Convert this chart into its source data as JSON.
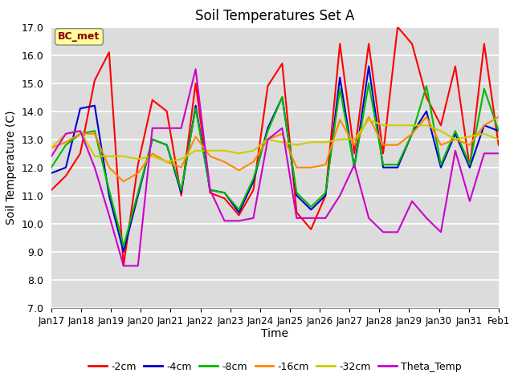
{
  "title": "Soil Temperatures Set A",
  "xlabel": "Time",
  "ylabel": "Soil Temperature (C)",
  "ylim": [
    7.0,
    17.0
  ],
  "yticks": [
    7.0,
    8.0,
    9.0,
    10.0,
    11.0,
    12.0,
    13.0,
    14.0,
    15.0,
    16.0,
    17.0
  ],
  "yticklabels": [
    "7.0",
    "8.0",
    "9.0",
    "10.0",
    "11.0",
    "12.0",
    "13.0",
    "14.0",
    "15.0",
    "16.0",
    "17.0"
  ],
  "bg_color": "#dcdcdc",
  "annotation_text": "BC_met",
  "annotation_bg": "#ffff99",
  "annotation_border": "#8B0000",
  "series_colors": {
    "-2cm": "#ff0000",
    "-4cm": "#0000cc",
    "-8cm": "#00bb00",
    "-16cm": "#ff8800",
    "-32cm": "#cccc00",
    "Theta_Temp": "#cc00cc"
  },
  "x_tick_labels": [
    "Jan 17",
    "Jan 18",
    "Jan 19",
    "Jan 20",
    "Jan 21",
    "Jan 22",
    "Jan 23",
    "Jan 24",
    "Jan 25",
    "Jan 26",
    "Jan 27",
    "Jan 28",
    "Jan 29",
    "Jan 30",
    "Jan 31",
    "Feb 1"
  ],
  "data": {
    "-2cm": [
      11.2,
      11.7,
      12.5,
      15.1,
      16.1,
      8.5,
      12.1,
      14.4,
      14.0,
      11.0,
      15.0,
      11.1,
      10.9,
      10.3,
      11.2,
      14.9,
      15.7,
      10.4,
      9.8,
      11.0,
      16.4,
      12.5,
      16.4,
      12.5,
      17.0,
      16.4,
      14.5,
      13.5,
      15.6,
      12.0,
      16.4,
      12.8
    ],
    "-4cm": [
      11.8,
      12.0,
      14.1,
      14.2,
      11.0,
      9.0,
      11.0,
      13.0,
      12.8,
      11.1,
      14.2,
      11.2,
      11.1,
      10.4,
      11.5,
      13.4,
      14.5,
      11.0,
      10.5,
      11.0,
      15.2,
      12.0,
      15.6,
      12.0,
      12.0,
      13.2,
      14.0,
      12.0,
      13.2,
      12.0,
      13.5,
      13.3
    ],
    "-8cm": [
      12.0,
      12.8,
      13.2,
      13.3,
      11.2,
      9.2,
      11.1,
      13.0,
      12.8,
      11.2,
      14.1,
      11.2,
      11.1,
      10.5,
      11.6,
      13.3,
      14.5,
      11.1,
      10.6,
      11.1,
      14.8,
      12.0,
      15.0,
      12.1,
      12.1,
      13.2,
      14.9,
      12.1,
      13.3,
      12.1,
      14.8,
      13.3
    ],
    "-16cm": [
      12.7,
      12.9,
      13.2,
      13.2,
      12.0,
      11.5,
      11.8,
      12.5,
      12.2,
      12.0,
      13.1,
      12.4,
      12.2,
      11.9,
      12.2,
      13.0,
      13.2,
      12.0,
      12.0,
      12.1,
      13.7,
      12.8,
      13.8,
      12.8,
      12.8,
      13.2,
      13.8,
      12.8,
      13.0,
      12.8,
      13.5,
      13.8
    ],
    "-32cm": [
      12.7,
      13.2,
      13.3,
      12.4,
      12.4,
      12.4,
      12.3,
      12.4,
      12.2,
      12.3,
      12.6,
      12.6,
      12.6,
      12.5,
      12.6,
      13.0,
      12.9,
      12.8,
      12.9,
      12.9,
      13.0,
      13.0,
      13.7,
      13.5,
      13.5,
      13.5,
      13.5,
      13.3,
      13.0,
      13.1,
      13.2,
      13.0
    ],
    "Theta_Temp": [
      12.4,
      13.2,
      13.3,
      12.0,
      10.3,
      8.5,
      8.5,
      13.4,
      13.4,
      13.4,
      15.5,
      11.2,
      10.1,
      10.1,
      10.2,
      13.0,
      13.4,
      10.2,
      10.2,
      10.2,
      11.0,
      12.1,
      10.2,
      9.7,
      9.7,
      10.8,
      10.2,
      9.7,
      12.6,
      10.8,
      12.5,
      12.5
    ]
  }
}
